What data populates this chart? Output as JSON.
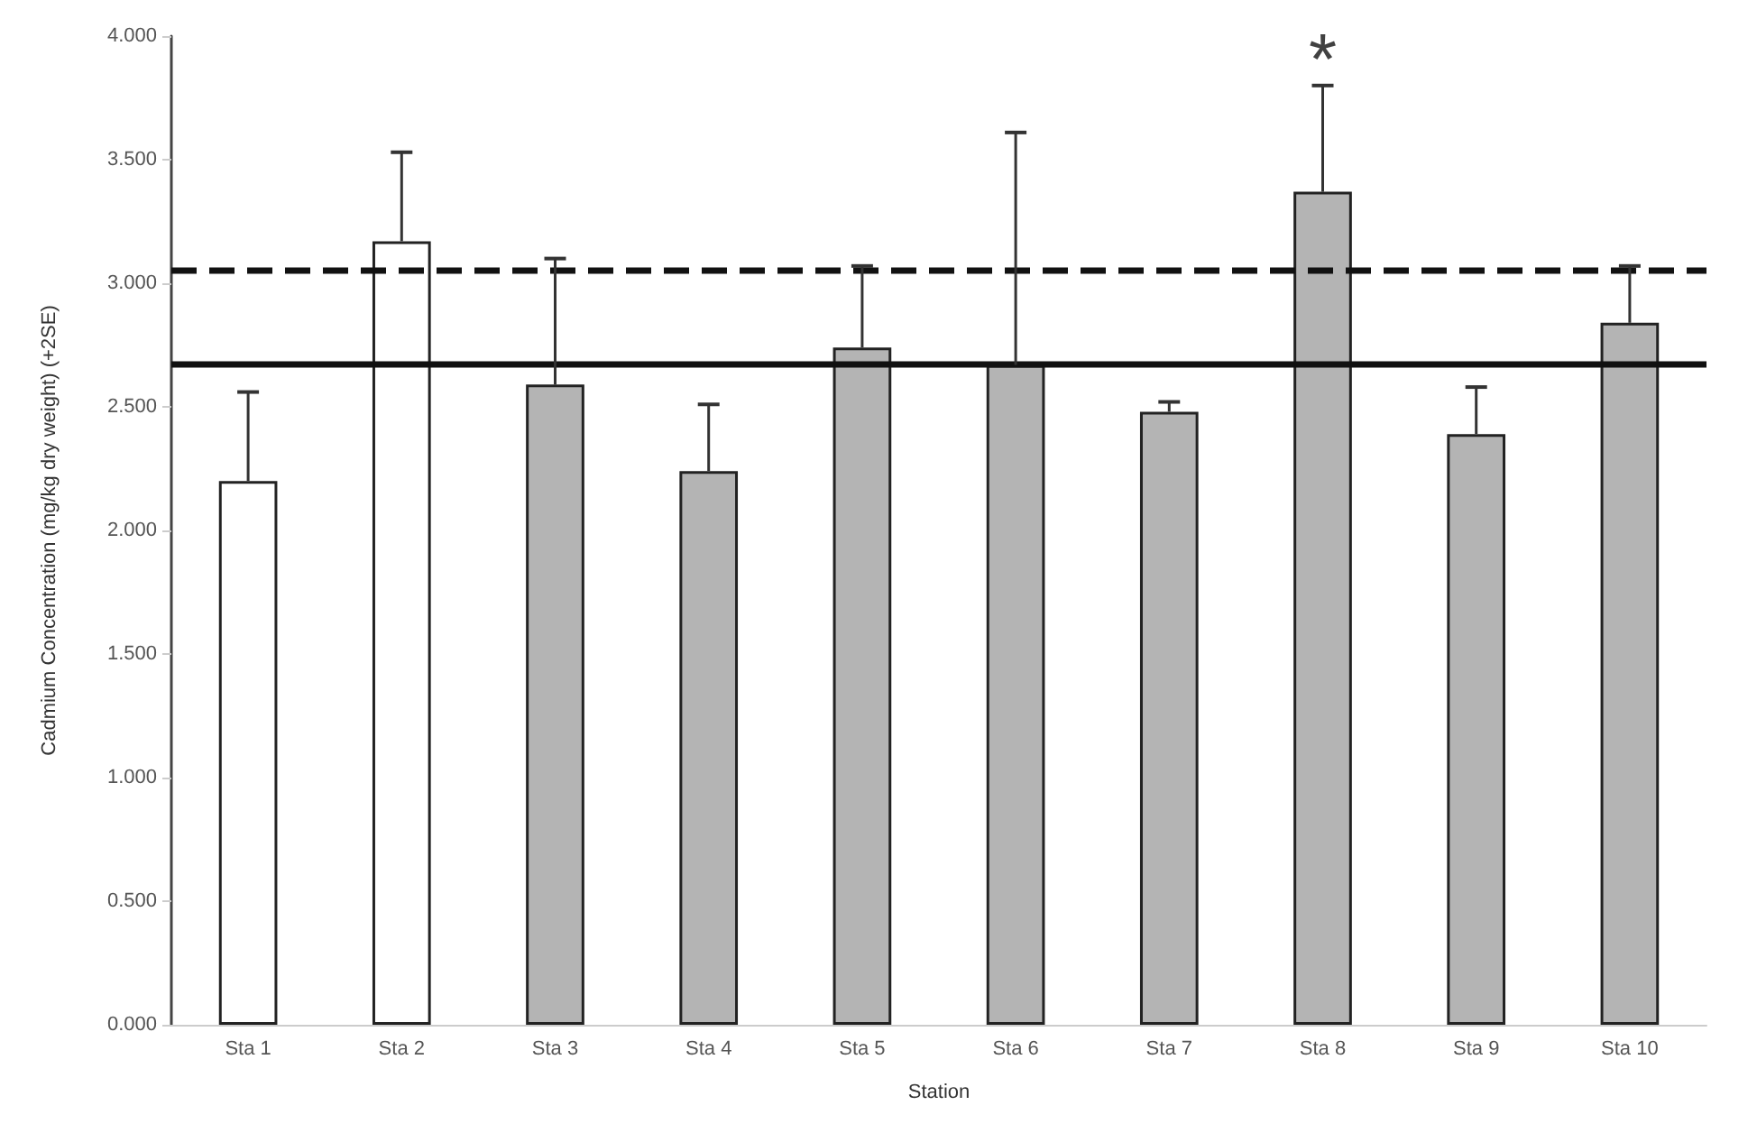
{
  "chart_data": {
    "type": "bar",
    "xlabel": "Station",
    "ylabel": "Cadmium Concentration (mg/kg dry weight) (+2SE)",
    "categories": [
      "Sta 1",
      "Sta 2",
      "Sta 3",
      "Sta 4",
      "Sta 5",
      "Sta 6",
      "Sta 7",
      "Sta 8",
      "Sta 9",
      "Sta 10"
    ],
    "values": [
      2.2,
      3.17,
      2.59,
      2.24,
      2.74,
      2.67,
      2.48,
      3.37,
      2.39,
      2.84
    ],
    "colors": [
      "#ffffff",
      "#ffffff",
      "#b4b4b4",
      "#b4b4b4",
      "#b4b4b4",
      "#b4b4b4",
      "#b4b4b4",
      "#b4b4b4",
      "#b4b4b4",
      "#b4b4b4"
    ],
    "errors": [
      [
        2.2,
        2.56
      ],
      [
        3.17,
        3.53
      ],
      [
        2.59,
        3.1
      ],
      [
        2.24,
        2.51
      ],
      [
        2.74,
        3.07
      ],
      [
        2.67,
        3.61
      ],
      [
        2.48,
        2.52
      ],
      [
        3.37,
        3.8
      ],
      [
        2.39,
        2.58
      ],
      [
        2.84,
        3.07
      ]
    ],
    "ylim": [
      0,
      4
    ],
    "yticks": [
      {
        "value": 0,
        "label": "0.000"
      },
      {
        "value": 0.5,
        "label": "0.500"
      },
      {
        "value": 1,
        "label": "1.000"
      },
      {
        "value": 1.5,
        "label": "1.500"
      },
      {
        "value": 2,
        "label": "2.000"
      },
      {
        "value": 2.5,
        "label": "2.500"
      },
      {
        "value": 3,
        "label": "3.000"
      },
      {
        "value": 3.5,
        "label": "3.500"
      },
      {
        "value": 4,
        "label": "4.000"
      }
    ],
    "ref_lines": [
      {
        "axis": "y",
        "value": 3.05,
        "color": "#111111",
        "line_style": "dashed"
      },
      {
        "axis": "y",
        "value": 2.67,
        "color": "#111111",
        "line_style": "solid"
      }
    ],
    "annotations": [
      {
        "text": "*",
        "x": "Sta 8",
        "y": 3.8
      }
    ],
    "grid": false
  }
}
